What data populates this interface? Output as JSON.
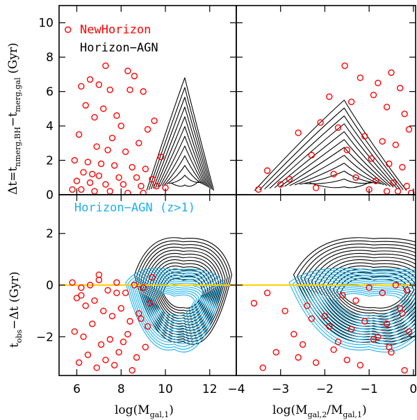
{
  "colors": {
    "newhorizon": "#ff0000",
    "horizon_agn": "#000000",
    "horizon_agn_z1": "#1ab0ec",
    "zero_line": "#ffd000"
  },
  "legend": {
    "newhorizon": "NewHorizon",
    "horizon_agn": "Horizon−AGN",
    "horizon_agn_z1": "Horizon−AGN (z>1)"
  },
  "labels": {
    "ylabel_top_main": "Δt=t",
    "ylabel_top_sub1": "nmerg,BH",
    "ylabel_top_mid": "−t",
    "ylabel_top_sub2": "merg,gal",
    "ylabel_top_unit": " (Gyr)",
    "ylabel_bottom_main": "t",
    "ylabel_bottom_sub": "obs",
    "ylabel_bottom_rest": "−Δt  (Gyr)",
    "xlabel_left_main": "log(M",
    "xlabel_left_sub": "gal,1",
    "xlabel_left_close": ")",
    "xlabel_right_main": "log(M",
    "xlabel_right_sub1": "gal,2",
    "xlabel_right_mid": "/M",
    "xlabel_right_sub2": "gal,1",
    "xlabel_right_close": ")"
  },
  "chart_data": [
    {
      "panel": "top-left",
      "type": "scatter",
      "xlim": [
        5.2,
        13.2
      ],
      "ylim": [
        0,
        11
      ],
      "xticks": [
        6,
        8,
        10,
        12
      ],
      "yticks": [
        0,
        2,
        4,
        6,
        8,
        10
      ],
      "ytick_labels": [
        "0",
        "2",
        "4",
        "6",
        "8",
        "10"
      ],
      "series": [
        {
          "name": "NewHorizon",
          "type": "scatter",
          "x": [
            5.6,
            6.2,
            6.6,
            7.0,
            7.3,
            7.5,
            8.3,
            8.6,
            8.4,
            9.0,
            6.4,
            7.2,
            7.8,
            6.8,
            8.0,
            9.2,
            9.5,
            6.1,
            7.6,
            8.8,
            6.9,
            7.4,
            8.2,
            9.8,
            5.9,
            6.5,
            7.1,
            7.7,
            8.5,
            9.1,
            6.3,
            6.7,
            7.0,
            7.9,
            8.7,
            9.4,
            6.0,
            6.6,
            7.3,
            8.1,
            8.9,
            9.6,
            10.0,
            5.8,
            6.2,
            6.8,
            7.5,
            8.3,
            9.0
          ],
          "y": [
            9.6,
            6.3,
            6.7,
            6.4,
            7.5,
            6.1,
            7.2,
            6.9,
            6.1,
            6.0,
            5.2,
            5.0,
            4.6,
            4.5,
            4.0,
            3.8,
            4.3,
            3.5,
            3.3,
            3.0,
            2.8,
            2.6,
            2.5,
            2.2,
            2.0,
            1.9,
            1.8,
            1.7,
            1.6,
            1.5,
            1.3,
            1.2,
            1.1,
            1.0,
            1.0,
            0.9,
            0.8,
            0.7,
            0.6,
            0.6,
            0.5,
            0.5,
            0.4,
            0.3,
            0.3,
            0.2,
            0.2,
            0.1,
            0.1
          ]
        },
        {
          "name": "Horizon−AGN",
          "type": "contour",
          "peak_x": 11.0,
          "peak_y": 6.8
        }
      ]
    },
    {
      "panel": "top-right",
      "type": "scatter",
      "xlim": [
        -4,
        0.05
      ],
      "ylim": [
        0,
        11
      ],
      "xticks": [
        -4,
        -3,
        -2,
        -1,
        0
      ],
      "yticks": [
        0,
        2,
        4,
        6,
        8,
        10
      ],
      "series": [
        {
          "name": "NewHorizon",
          "type": "scatter",
          "x": [
            -1.55,
            -1.2,
            -0.8,
            -0.5,
            -0.3,
            -1.9,
            -1.4,
            -0.9,
            -0.6,
            -0.2,
            -3.3,
            -2.6,
            -2.1,
            -1.7,
            -1.1,
            -0.7,
            -0.4,
            -0.1,
            -3.0,
            -2.3,
            -1.5,
            -0.95,
            -0.55,
            -0.25,
            -2.8,
            -1.8,
            -1.3,
            -0.85,
            -0.45,
            -0.15,
            -3.5,
            -2.2,
            -1.0,
            -0.6,
            -0.35,
            -0.05
          ],
          "y": [
            7.5,
            6.8,
            6.5,
            7.1,
            6.2,
            5.7,
            5.4,
            5.8,
            5.1,
            4.7,
            1.4,
            3.6,
            4.2,
            3.9,
            3.4,
            3.1,
            2.9,
            3.8,
            0.6,
            2.3,
            2.6,
            2.1,
            1.8,
            1.6,
            0.9,
            1.2,
            1.0,
            0.8,
            0.7,
            0.5,
            0.3,
            0.4,
            0.3,
            0.2,
            0.2,
            0.1
          ]
        },
        {
          "name": "Horizon−AGN",
          "type": "contour",
          "peak_x": -1.5,
          "peak_y": 5.5
        }
      ]
    },
    {
      "panel": "bottom-left",
      "type": "scatter",
      "xlim": [
        5.2,
        13.2
      ],
      "ylim": [
        -3.5,
        3.5
      ],
      "xticks": [
        6,
        8,
        10,
        12
      ],
      "yticks": [
        -2,
        0,
        2
      ],
      "xtick_labels": [
        "6",
        "8",
        "10",
        "12"
      ],
      "ytick_labels": [
        "−2",
        "0",
        "2"
      ],
      "series": [
        {
          "name": "NewHorizon",
          "type": "scatter",
          "x": [
            5.8,
            6.2,
            6.6,
            7.0,
            7.4,
            7.8,
            8.2,
            8.6,
            9.0,
            9.4,
            6.0,
            6.4,
            6.8,
            7.2,
            7.6,
            8.0,
            8.4,
            8.8,
            9.2,
            5.9,
            6.3,
            6.7,
            7.1,
            7.5,
            7.9,
            8.3,
            8.7,
            9.1,
            6.1,
            6.5,
            6.9,
            7.3,
            7.7,
            8.1,
            8.5,
            8.9,
            9.3,
            6.2,
            7.0,
            7.8
          ],
          "y": [
            0.1,
            -0.1,
            0.0,
            0.2,
            -0.2,
            0.1,
            -0.3,
            0.0,
            -0.1,
            0.3,
            -0.5,
            -0.8,
            -0.6,
            -1.0,
            -1.2,
            -0.9,
            -1.4,
            -1.1,
            -1.6,
            -1.8,
            -2.0,
            -1.5,
            -2.3,
            -2.1,
            -2.6,
            -1.9,
            -2.8,
            -2.4,
            -3.0,
            -2.7,
            -3.2,
            -2.9,
            -3.1,
            -2.2,
            -3.3,
            -1.3,
            -0.7,
            -0.4,
            0.4,
            -0.3
          ]
        },
        {
          "name": "Horizon−AGN",
          "type": "contour",
          "peak_x": 10.8,
          "peak_y": 2.0
        },
        {
          "name": "Horizon−AGN (z>1)",
          "type": "contour",
          "peak_x": 10.4,
          "peak_y": 0.4
        }
      ]
    },
    {
      "panel": "bottom-right",
      "type": "scatter",
      "xlim": [
        -4,
        0.05
      ],
      "ylim": [
        -3.5,
        3.5
      ],
      "xticks": [
        -4,
        -3,
        -2,
        -1,
        0
      ],
      "yticks": [
        -2,
        0,
        2
      ],
      "xtick_labels": [
        "−4",
        "−3",
        "−2",
        "−1",
        "0"
      ],
      "series": [
        {
          "name": "NewHorizon",
          "type": "scatter",
          "x": [
            -3.6,
            -3.3,
            -2.9,
            -2.5,
            -2.2,
            -1.9,
            -1.6,
            -1.3,
            -1.0,
            -0.7,
            -0.4,
            -0.15,
            -3.1,
            -2.7,
            -2.4,
            -2.0,
            -1.7,
            -1.4,
            -1.1,
            -0.8,
            -0.5,
            -0.25,
            -3.4,
            -2.6,
            -1.8,
            -1.2,
            -0.9,
            -0.6,
            -0.3,
            -0.1,
            -2.3,
            -1.5,
            -0.55,
            -0.2
          ],
          "y": [
            -0.7,
            -0.3,
            -1.0,
            -2.3,
            -3.0,
            -1.6,
            -0.4,
            -0.6,
            -0.1,
            -0.3,
            0.0,
            -0.2,
            -2.6,
            -1.9,
            -0.8,
            -1.2,
            -2.2,
            -1.7,
            -1.4,
            -2.0,
            -2.6,
            -1.1,
            -3.2,
            -2.8,
            -2.5,
            -3.1,
            -2.1,
            -1.5,
            -0.9,
            -1.8,
            -1.3,
            -2.9,
            -2.4,
            -3.3
          ]
        },
        {
          "name": "Horizon−AGN",
          "type": "contour",
          "peak_x": -0.9,
          "peak_y": 0.8
        },
        {
          "name": "Horizon−AGN (z>1)",
          "type": "contour",
          "peak_x": -1.0,
          "peak_y": 0.7
        }
      ]
    }
  ]
}
